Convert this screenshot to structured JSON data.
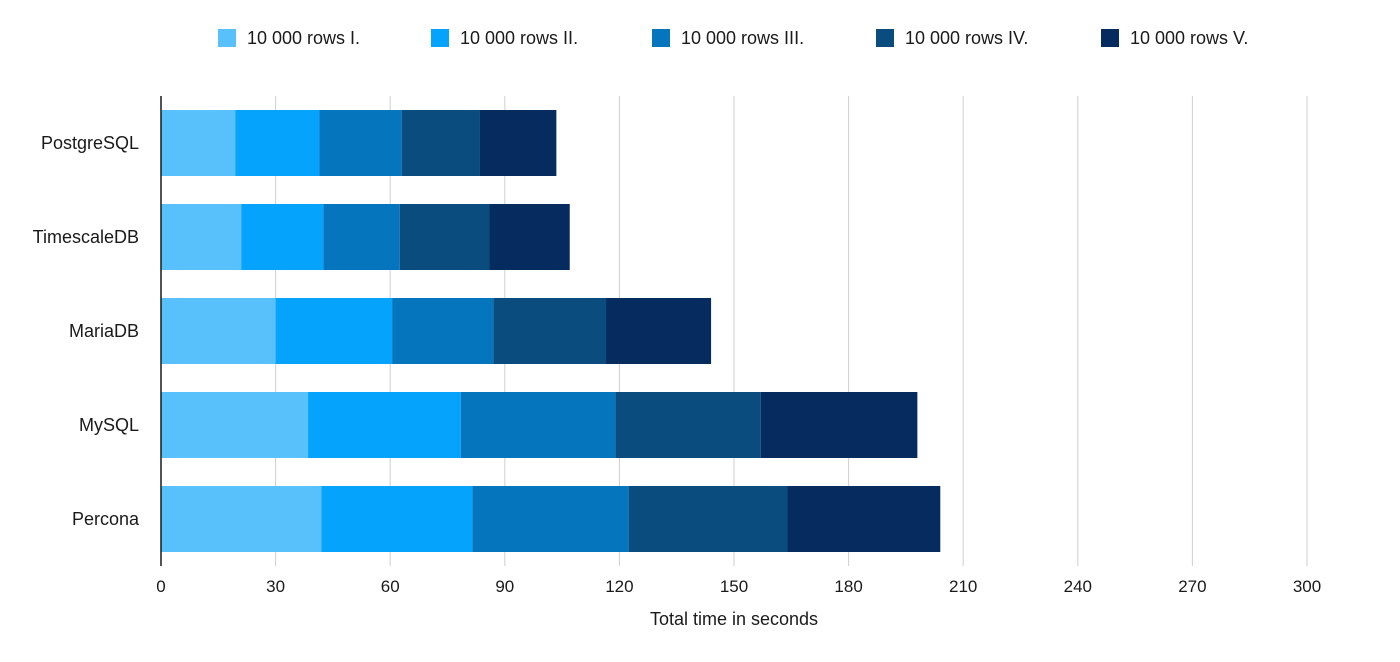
{
  "chart_data": {
    "type": "bar",
    "orientation": "horizontal",
    "stacked": true,
    "title": "",
    "xlabel": "Total time in seconds",
    "ylabel": "",
    "xlim": [
      0,
      300
    ],
    "x_ticks": [
      0,
      30,
      60,
      90,
      120,
      150,
      180,
      210,
      240,
      270,
      300
    ],
    "grid": "vertical",
    "legend_position": "top",
    "categories": [
      "PostgreSQL",
      "TimescaleDB",
      "MariaDB",
      "MySQL",
      "Percona"
    ],
    "series": [
      {
        "name": "10 000 rows I.",
        "color": "#58c0fb",
        "values": [
          19.5,
          21,
          30,
          38.5,
          42
        ]
      },
      {
        "name": "10 000 rows II.",
        "color": "#05a3fc",
        "values": [
          22,
          21.5,
          30.5,
          40,
          39.5
        ]
      },
      {
        "name": "10 000 rows III.",
        "color": "#0576bd",
        "values": [
          21.5,
          20,
          26.5,
          40.5,
          41
        ]
      },
      {
        "name": "10 000 rows IV.",
        "color": "#0a4c7e",
        "values": [
          20.5,
          23.5,
          29.5,
          38,
          41.5
        ]
      },
      {
        "name": "10 000 rows V.",
        "color": "#062b5e",
        "values": [
          20,
          21,
          27.5,
          41,
          40
        ]
      }
    ]
  }
}
